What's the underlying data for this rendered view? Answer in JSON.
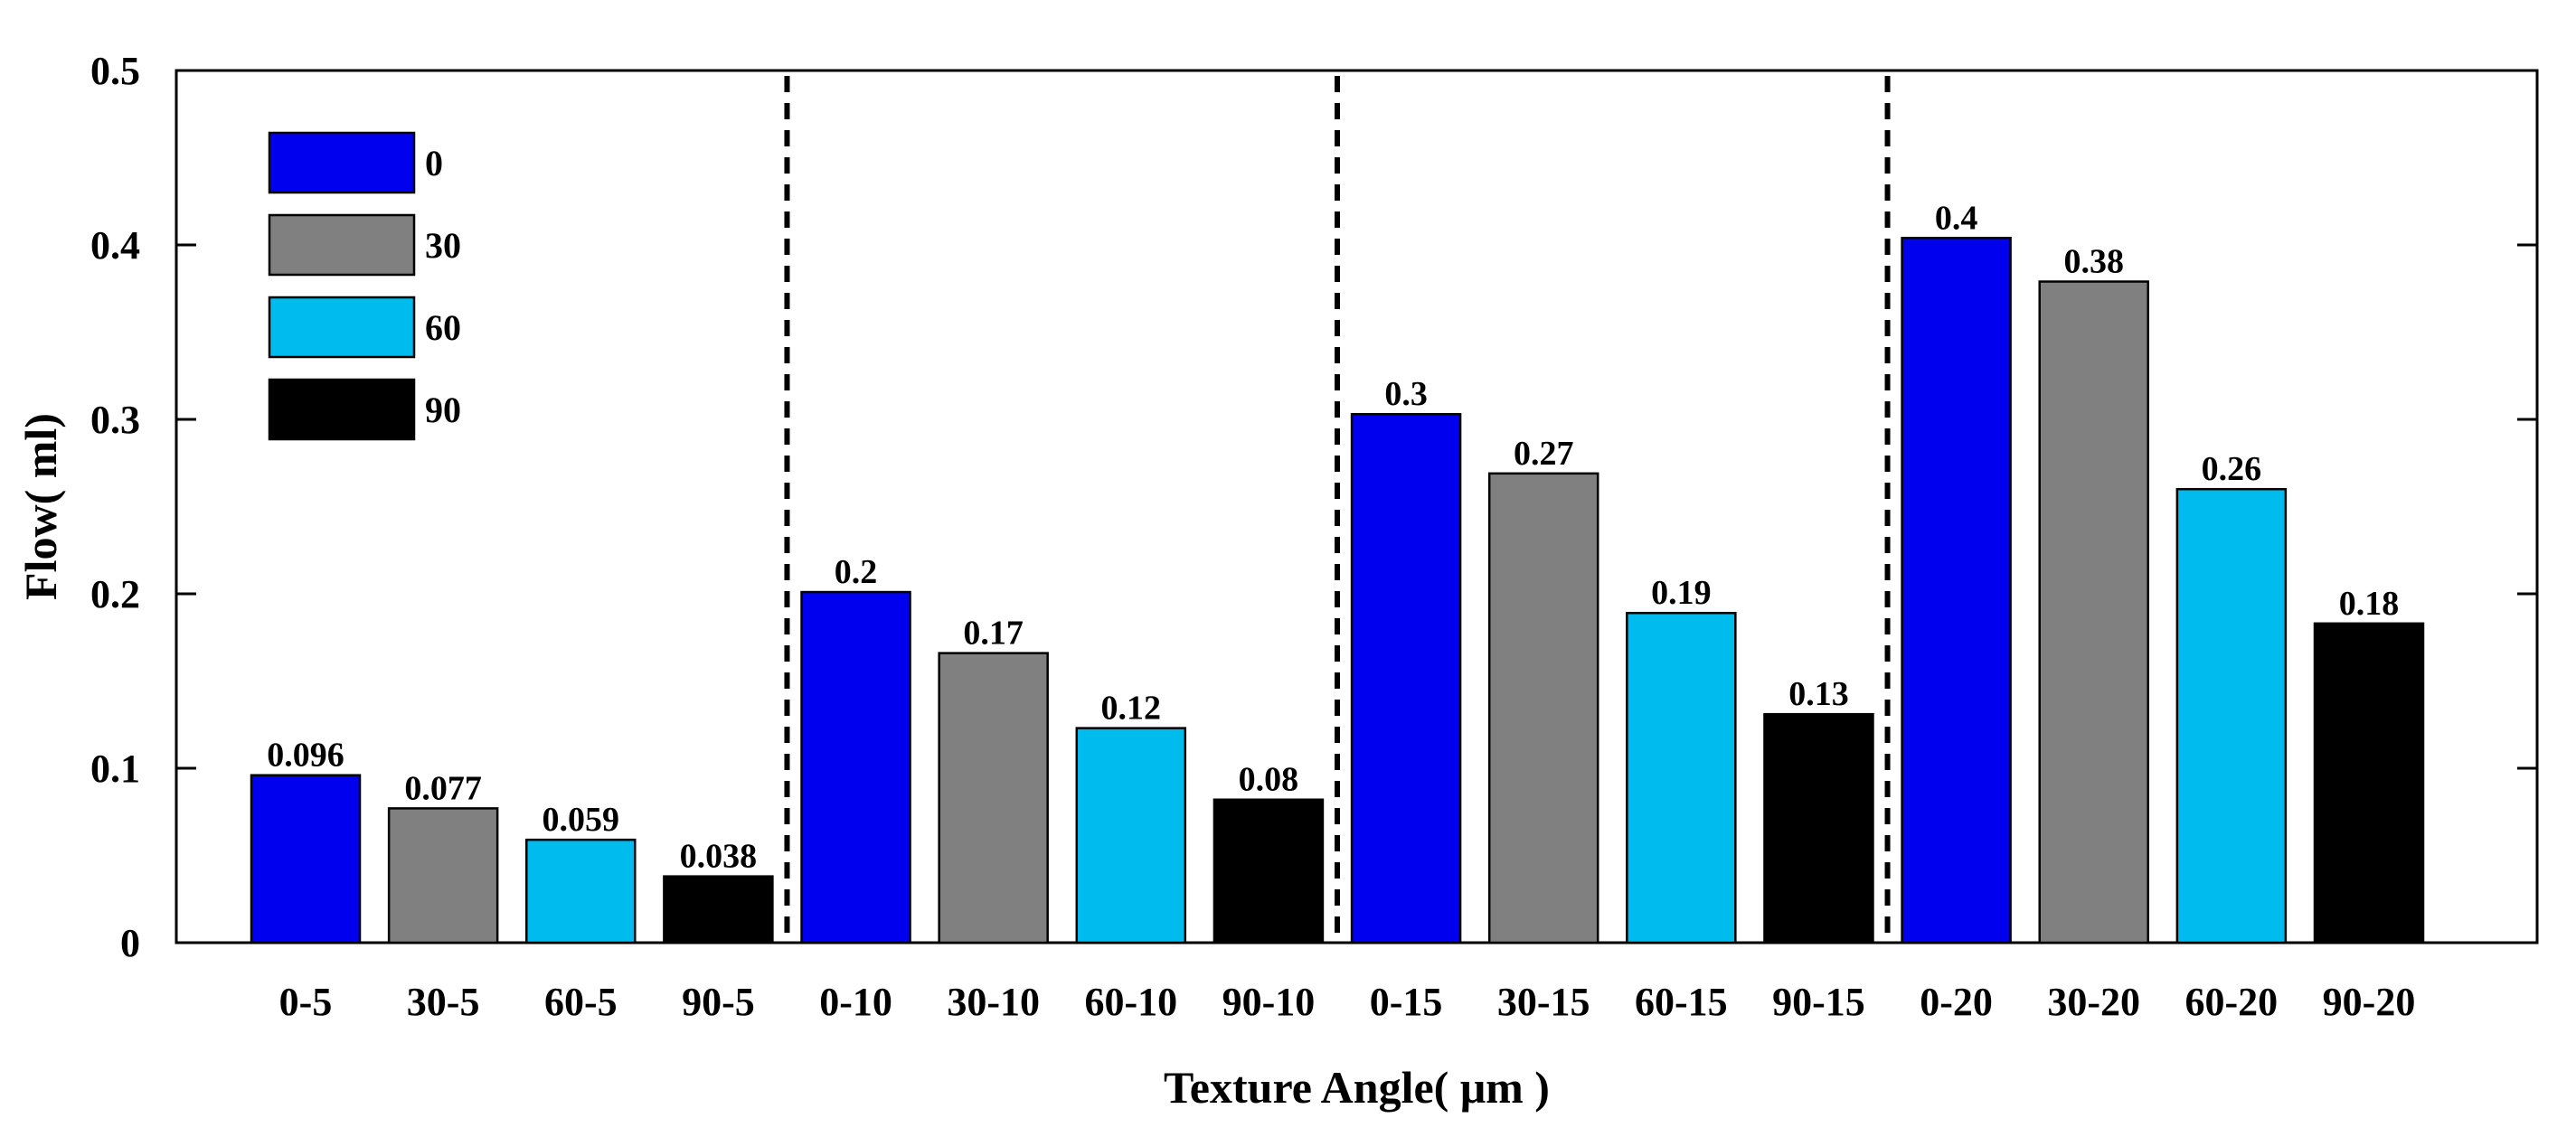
{
  "chart_data": {
    "type": "bar",
    "title": "",
    "xlabel": "Texture Angle( μm )",
    "ylabel": "Flow( ml)",
    "ylim": [
      0,
      0.5
    ],
    "yticks": [
      0,
      0.1,
      0.2,
      0.3,
      0.4,
      0.5
    ],
    "ytick_labels": [
      "0",
      "0.1",
      "0.2",
      "0.3",
      "0.4",
      "0.5"
    ],
    "grid": false,
    "legend_position": "top-left",
    "legend": [
      {
        "label": "0",
        "color": "#0000ee"
      },
      {
        "label": "30",
        "color": "#808080"
      },
      {
        "label": "60",
        "color": "#00bbee"
      },
      {
        "label": "90",
        "color": "#000000"
      }
    ],
    "group_separators_after": [
      4,
      8,
      12
    ],
    "bars": [
      {
        "category": "0-5",
        "value": 0.096,
        "label": "0.096",
        "series": 0
      },
      {
        "category": "30-5",
        "value": 0.077,
        "label": "0.077",
        "series": 1
      },
      {
        "category": "60-5",
        "value": 0.059,
        "label": "0.059",
        "series": 2
      },
      {
        "category": "90-5",
        "value": 0.038,
        "label": "0.038",
        "series": 3
      },
      {
        "category": "0-10",
        "value": 0.201,
        "label": "0.2",
        "series": 0
      },
      {
        "category": "30-10",
        "value": 0.166,
        "label": "0.17",
        "series": 1
      },
      {
        "category": "60-10",
        "value": 0.123,
        "label": "0.12",
        "series": 2
      },
      {
        "category": "90-10",
        "value": 0.082,
        "label": "0.08",
        "series": 3
      },
      {
        "category": "0-15",
        "value": 0.303,
        "label": "0.3",
        "series": 0
      },
      {
        "category": "30-15",
        "value": 0.269,
        "label": "0.27",
        "series": 1
      },
      {
        "category": "60-15",
        "value": 0.189,
        "label": "0.19",
        "series": 2
      },
      {
        "category": "90-15",
        "value": 0.131,
        "label": "0.13",
        "series": 3
      },
      {
        "category": "0-20",
        "value": 0.404,
        "label": "0.4",
        "series": 0
      },
      {
        "category": "30-20",
        "value": 0.379,
        "label": "0.38",
        "series": 1
      },
      {
        "category": "60-20",
        "value": 0.26,
        "label": "0.26",
        "series": 2
      },
      {
        "category": "90-20",
        "value": 0.183,
        "label": "0.18",
        "series": 3
      }
    ]
  }
}
